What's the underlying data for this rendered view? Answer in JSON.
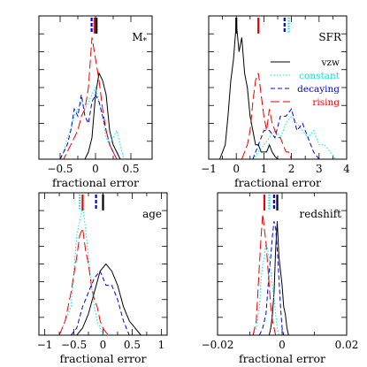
{
  "colors": {
    "vzw": "#000000",
    "constant": "#00e5e5",
    "decaying": "#0000dd",
    "rising": "#ee0000"
  },
  "legend": {
    "entries": [
      {
        "key": "vzw",
        "label": "vzw",
        "style": "solid"
      },
      {
        "key": "constant",
        "label": "constant",
        "style": "dotted"
      },
      {
        "key": "decaying",
        "label": "decaying",
        "style": "dashed"
      },
      {
        "key": "rising",
        "label": "rising",
        "style": "longdash"
      }
    ]
  },
  "chart_data": [
    {
      "type": "line",
      "label": "M*",
      "xlabel": "fractional error",
      "xlim": [
        -0.8,
        0.8
      ],
      "ticks": [
        -0.5,
        0,
        0.5
      ],
      "tick_labels": [
        "−0.5",
        "0",
        "0.5"
      ],
      "median_markers": {
        "constant": -0.02,
        "decaying": -0.055,
        "rising": -0.01,
        "vzw": 0.015
      },
      "series": [
        {
          "key": "vzw",
          "x": [
            -0.4,
            -0.35,
            -0.3,
            -0.25,
            -0.2,
            -0.15,
            -0.1,
            -0.05,
            0,
            0.05,
            0.1,
            0.15,
            0.2,
            0.25,
            0.3,
            0.35,
            0.4
          ],
          "y": [
            0,
            0,
            0,
            0,
            0,
            0,
            0.05,
            0.15,
            0.45,
            0.6,
            0.55,
            0.45,
            0.2,
            0.1,
            0.05,
            0,
            0
          ]
        },
        {
          "key": "constant",
          "x": [
            -0.5,
            -0.45,
            -0.4,
            -0.35,
            -0.3,
            -0.25,
            -0.2,
            -0.15,
            -0.1,
            -0.05,
            0,
            0.05,
            0.1,
            0.15,
            0.2,
            0.25,
            0.3,
            0.35,
            0.4
          ],
          "y": [
            0,
            0.05,
            0.15,
            0.2,
            0.3,
            0.35,
            0.4,
            0.35,
            0.4,
            0.45,
            0.5,
            0.4,
            0.3,
            0.15,
            0.1,
            0.15,
            0.2,
            0.1,
            0
          ]
        },
        {
          "key": "decaying",
          "x": [
            -0.5,
            -0.45,
            -0.4,
            -0.35,
            -0.3,
            -0.25,
            -0.2,
            -0.15,
            -0.1,
            -0.05,
            0,
            0.05,
            0.1,
            0.15,
            0.2,
            0.25,
            0.3,
            0.35
          ],
          "y": [
            0,
            0.05,
            0.1,
            0.2,
            0.35,
            0.3,
            0.45,
            0.3,
            0.25,
            0.4,
            0.45,
            0.4,
            0.3,
            0.2,
            0.1,
            0.05,
            0.05,
            0
          ]
        },
        {
          "key": "rising",
          "x": [
            -0.5,
            -0.45,
            -0.4,
            -0.35,
            -0.3,
            -0.25,
            -0.2,
            -0.15,
            -0.1,
            -0.05,
            0,
            0.05,
            0.1,
            0.15,
            0.2,
            0.25,
            0.3,
            0.35
          ],
          "y": [
            0,
            0,
            0.05,
            0.1,
            0.15,
            0.2,
            0.3,
            0.35,
            0.5,
            0.85,
            0.7,
            0.55,
            0.35,
            0.2,
            0.1,
            0.05,
            0,
            0
          ]
        }
      ]
    },
    {
      "type": "line",
      "label": "SFR",
      "xlabel": "fractional error",
      "xlim": [
        -1,
        4
      ],
      "ticks": [
        -1,
        0,
        1,
        2,
        3,
        4
      ],
      "tick_labels": [
        "−1",
        "0",
        "1",
        "2",
        "3",
        "4"
      ],
      "median_markers": {
        "vzw": 0.0,
        "rising": 0.8,
        "decaying": 1.75,
        "constant": 1.9
      },
      "series": [
        {
          "key": "vzw",
          "x": [
            -0.6,
            -0.5,
            -0.4,
            -0.3,
            -0.2,
            -0.1,
            0,
            0.1,
            0.2,
            0.3,
            0.4,
            0.5,
            0.6,
            0.7,
            0.8,
            0.9,
            1.0,
            1.1,
            1.2,
            1.3,
            1.4,
            1.5
          ],
          "y": [
            0,
            0.05,
            0.1,
            0.3,
            0.55,
            0.7,
            0.95,
            0.75,
            0.85,
            0.6,
            0.5,
            0.3,
            0.2,
            0.1,
            0.1,
            0.05,
            0.05,
            0.05,
            0.1,
            0.05,
            0.02,
            0
          ]
        },
        {
          "key": "constant",
          "x": [
            0.6,
            0.8,
            1.0,
            1.2,
            1.4,
            1.6,
            1.8,
            2.0,
            2.2,
            2.4,
            2.6,
            2.8,
            3.0,
            3.2,
            3.4,
            3.6
          ],
          "y": [
            0,
            0.05,
            0.1,
            0.15,
            0.2,
            0.15,
            0.25,
            0.3,
            0.25,
            0.2,
            0.15,
            0.2,
            0.1,
            0.1,
            0.05,
            0
          ]
        },
        {
          "key": "decaying",
          "x": [
            0.6,
            0.8,
            1.0,
            1.2,
            1.4,
            1.6,
            1.8,
            2.0,
            2.2,
            2.4,
            2.6,
            2.8,
            3.0
          ],
          "y": [
            0,
            0.1,
            0.2,
            0.2,
            0.15,
            0.3,
            0.3,
            0.35,
            0.2,
            0.25,
            0.15,
            0.05,
            0
          ]
        },
        {
          "key": "rising",
          "x": [
            0.2,
            0.3,
            0.4,
            0.5,
            0.6,
            0.7,
            0.8,
            0.9,
            1.0,
            1.1,
            1.2,
            1.3,
            1.4,
            1.5,
            1.6,
            1.7,
            1.8,
            1.9,
            2.0
          ],
          "y": [
            0,
            0.05,
            0.1,
            0.2,
            0.4,
            0.55,
            0.6,
            0.45,
            0.3,
            0.2,
            0.35,
            0.25,
            0.2,
            0.15,
            0.15,
            0.1,
            0.05,
            0.05,
            0
          ]
        }
      ]
    },
    {
      "type": "line",
      "label": "age",
      "xlabel": "fractional error",
      "xlim": [
        -1.1,
        1.1
      ],
      "ticks": [
        -1,
        -0.5,
        0,
        0.5,
        1
      ],
      "tick_labels": [
        "−1",
        "−0.5",
        "0",
        "0.5",
        "1"
      ],
      "median_markers": {
        "constant": -0.4,
        "rising": -0.35,
        "decaying": -0.12,
        "vzw": 0.0
      },
      "series": [
        {
          "key": "vzw",
          "x": [
            -0.55,
            -0.45,
            -0.35,
            -0.25,
            -0.15,
            -0.05,
            0.05,
            0.15,
            0.25,
            0.35,
            0.45,
            0.55,
            0.65
          ],
          "y": [
            0,
            0,
            0.05,
            0.15,
            0.3,
            0.45,
            0.5,
            0.45,
            0.35,
            0.2,
            0.1,
            0.05,
            0
          ]
        },
        {
          "key": "constant",
          "x": [
            -0.75,
            -0.65,
            -0.55,
            -0.5,
            -0.45,
            -0.4,
            -0.35,
            -0.3,
            -0.25,
            -0.2,
            -0.15,
            -0.1,
            -0.05,
            0
          ],
          "y": [
            0,
            0.1,
            0.2,
            0.45,
            0.7,
            0.8,
            0.9,
            0.75,
            0.55,
            0.35,
            0.2,
            0.1,
            0.05,
            0
          ]
        },
        {
          "key": "decaying",
          "x": [
            -0.55,
            -0.45,
            -0.35,
            -0.25,
            -0.15,
            -0.05,
            0.05,
            0.15,
            0.25,
            0.35,
            0.45
          ],
          "y": [
            0,
            0.05,
            0.2,
            0.3,
            0.4,
            0.45,
            0.35,
            0.35,
            0.25,
            0.1,
            0
          ]
        },
        {
          "key": "rising",
          "x": [
            -0.75,
            -0.65,
            -0.55,
            -0.45,
            -0.4,
            -0.35,
            -0.3,
            -0.25,
            -0.2,
            -0.15,
            -0.1,
            -0.05,
            0,
            0.05,
            0.1
          ],
          "y": [
            0,
            0.1,
            0.3,
            0.55,
            0.7,
            0.75,
            0.6,
            0.5,
            0.35,
            0.25,
            0.2,
            0.1,
            0.05,
            0.02,
            0
          ]
        }
      ]
    },
    {
      "type": "line",
      "label": "redshift",
      "xlabel": "fractional error",
      "xlim": [
        -0.02,
        0.02
      ],
      "ticks": [
        -0.02,
        0,
        0.02
      ],
      "tick_labels": [
        "−0.02",
        "0",
        "0.02"
      ],
      "median_markers": {
        "rising": -0.0055,
        "constant": -0.004,
        "decaying": -0.0025,
        "vzw": -0.0015
      },
      "series": [
        {
          "key": "vzw",
          "x": [
            -0.004,
            -0.0035,
            -0.003,
            -0.0025,
            -0.002,
            -0.0015,
            -0.001,
            -0.0005,
            0,
            0.0005,
            0.001,
            0.0015,
            0.002
          ],
          "y": [
            0,
            0.05,
            0.15,
            0.3,
            0.6,
            0.8,
            0.55,
            0.45,
            0.35,
            0.2,
            0.15,
            0.05,
            0
          ]
        },
        {
          "key": "constant",
          "x": [
            -0.009,
            -0.008,
            -0.007,
            -0.0065,
            -0.006,
            -0.0055,
            -0.005,
            -0.0045,
            -0.004,
            -0.0035,
            -0.003,
            -0.0025,
            -0.002,
            -0.0015,
            -0.001
          ],
          "y": [
            0,
            0.05,
            0.2,
            0.4,
            0.5,
            0.55,
            0.65,
            0.6,
            0.55,
            0.45,
            0.35,
            0.25,
            0.15,
            0.05,
            0
          ]
        },
        {
          "key": "decaying",
          "x": [
            -0.007,
            -0.006,
            -0.005,
            -0.0045,
            -0.004,
            -0.0035,
            -0.003,
            -0.0025,
            -0.002,
            -0.0015,
            -0.001,
            -0.0005,
            0,
            0.0005
          ],
          "y": [
            0,
            0.05,
            0.15,
            0.3,
            0.45,
            0.55,
            0.7,
            0.8,
            0.75,
            0.6,
            0.4,
            0.2,
            0.05,
            0
          ]
        },
        {
          "key": "rising",
          "x": [
            -0.009,
            -0.008,
            -0.0075,
            -0.007,
            -0.0065,
            -0.006,
            -0.0055,
            -0.005,
            -0.0045,
            -0.004,
            -0.0035,
            -0.003,
            -0.0025,
            -0.002
          ],
          "y": [
            0,
            0.1,
            0.3,
            0.5,
            0.7,
            0.85,
            0.75,
            0.65,
            0.5,
            0.35,
            0.2,
            0.1,
            0.05,
            0
          ]
        }
      ]
    }
  ]
}
